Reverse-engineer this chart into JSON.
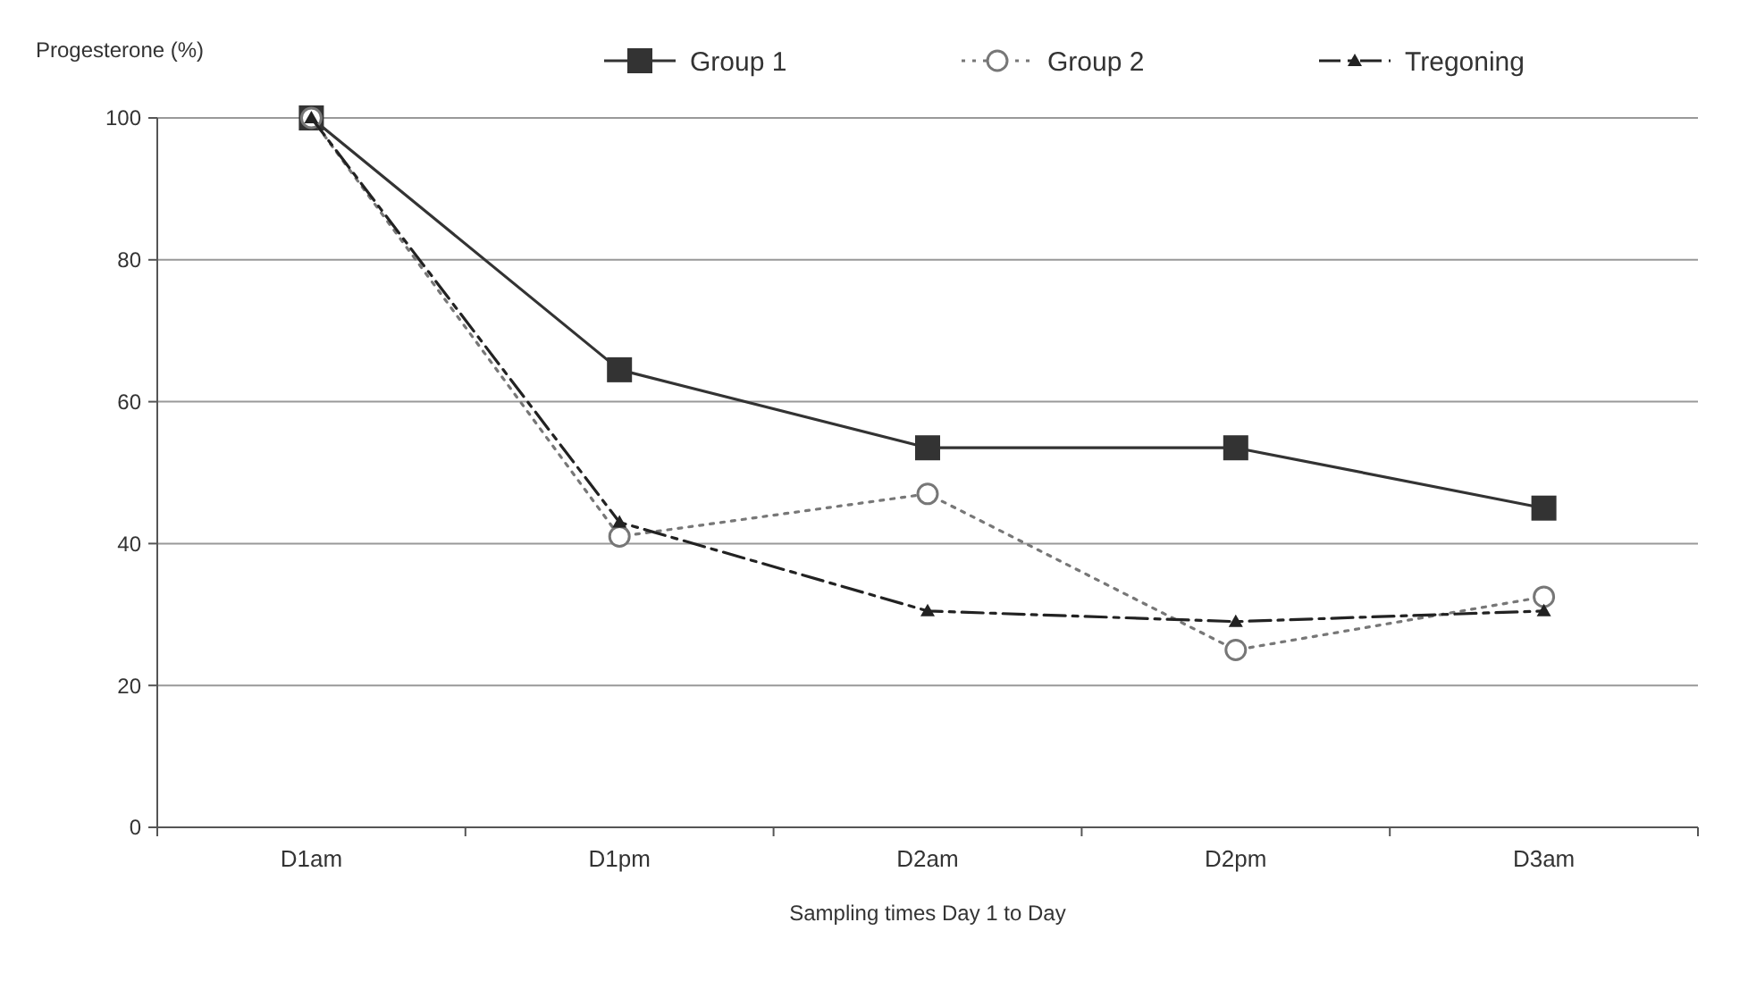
{
  "chart_data": {
    "type": "line",
    "ylabel": "Progesterone (%)",
    "xlabel": "Sampling times Day 1 to Day",
    "categories": [
      "D1am",
      "D1pm",
      "D2am",
      "D2pm",
      "D3am"
    ],
    "ylim": [
      0,
      100
    ],
    "yticks": [
      0,
      20,
      40,
      60,
      80,
      100
    ],
    "grid": "y",
    "legend": "top",
    "series": [
      {
        "name": "Group 1",
        "color": "#333333",
        "values": [
          100,
          64.5,
          53.5,
          53.5,
          45
        ],
        "marker": "square",
        "line_style": "solid"
      },
      {
        "name": "Group 2",
        "color": "#777777",
        "values": [
          100,
          41,
          47,
          25,
          32.5
        ],
        "marker": "circle",
        "line_style": "dotted"
      },
      {
        "name": "Tregoning",
        "color": "#222222",
        "values": [
          100,
          43,
          30.5,
          29,
          30.5
        ],
        "marker": "triangle",
        "line_style": "dashed"
      }
    ]
  }
}
